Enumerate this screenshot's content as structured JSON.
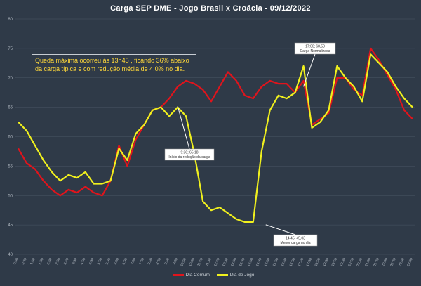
{
  "chart_data": {
    "type": "line",
    "title": "Carga SEP DME - Jogo Brasil x Croácia - 09/12/2022",
    "ylim": [
      40,
      80
    ],
    "yticks": [
      40,
      45,
      50,
      55,
      60,
      65,
      70,
      75,
      80
    ],
    "grid": true,
    "legend_position": "bottom",
    "x": [
      "0:00",
      "0:30",
      "1:00",
      "1:30",
      "2:00",
      "2:30",
      "3:00",
      "3:30",
      "4:00",
      "4:30",
      "5:00",
      "5:30",
      "6:00",
      "6:30",
      "7:00",
      "7:30",
      "8:00",
      "8:30",
      "9:00",
      "9:30",
      "10:00",
      "10:30",
      "11:00",
      "11:30",
      "12:00",
      "12:30",
      "13:00",
      "13:30",
      "14:00",
      "14:30",
      "15:00",
      "15:30",
      "16:00",
      "16:30",
      "17:00",
      "17:30",
      "18:00",
      "18:30",
      "19:00",
      "19:30",
      "20:00",
      "20:30",
      "21:00",
      "21:30",
      "22:00",
      "22:30",
      "23:00",
      "23:30"
    ],
    "series": [
      {
        "name": "Dia Comum",
        "color": "#e0141c",
        "values": [
          58.0,
          55.5,
          54.5,
          52.5,
          51.0,
          50.0,
          51.0,
          50.5,
          51.5,
          50.5,
          50.0,
          52.5,
          58.5,
          55.0,
          59.5,
          62.0,
          64.5,
          65.0,
          66.5,
          68.5,
          69.5,
          69.0,
          68.0,
          66.0,
          68.5,
          71.0,
          69.5,
          67.0,
          66.5,
          68.5,
          69.5,
          69.0,
          69.0,
          67.5,
          69.5,
          62.0,
          63.0,
          64.0,
          70.0,
          70.0,
          68.0,
          67.0,
          75.0,
          73.0,
          70.5,
          68.0,
          64.5,
          63.0
        ]
      },
      {
        "name": "Dia de Jogo",
        "color": "#f0f01e",
        "values": [
          62.5,
          61.0,
          58.5,
          56.0,
          54.0,
          52.5,
          53.5,
          53.0,
          54.0,
          52.0,
          52.0,
          52.5,
          58.0,
          56.0,
          60.5,
          62.0,
          64.5,
          65.0,
          63.5,
          65.0,
          63.5,
          57.0,
          49.0,
          47.5,
          48.0,
          47.0,
          46.0,
          45.5,
          45.5,
          57.5,
          64.5,
          67.0,
          66.5,
          67.5,
          72.0,
          61.5,
          62.5,
          64.5,
          72.0,
          70.0,
          68.5,
          66.0,
          74.0,
          72.5,
          71.0,
          68.5,
          66.5,
          65.0
        ]
      }
    ],
    "annotations": [
      {
        "text": "Queda máxima ocorreu às 13h45 , ficando 36% abaixo da carga típica e com redução média de 4,0% no dia."
      },
      {
        "line1": "9:30; 65,18",
        "line2": "Início da redução da carga",
        "x": "9:30",
        "y": 65.18
      },
      {
        "line1": "14:45; 45,03",
        "line2": "Menor carga no dia",
        "x": "14:45",
        "y": 45.03
      },
      {
        "line1": "17:00; 68,50",
        "line2": "Carga Normalizada",
        "x": "17:00",
        "y": 68.5
      }
    ]
  }
}
